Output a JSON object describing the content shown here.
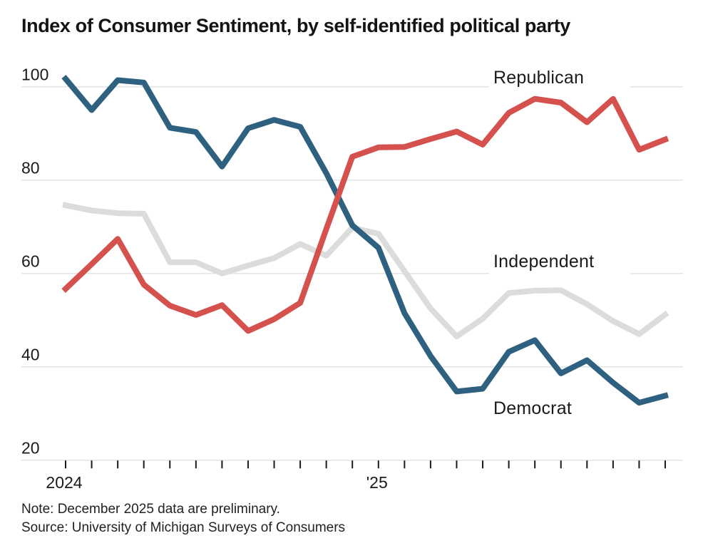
{
  "title": "Index of Consumer Sentiment, by self-identified political party",
  "note": "Note: December 2025 data are preliminary.",
  "source": "Source: University of Michigan Surveys of Consumers",
  "colors": {
    "republican": "#d4514e",
    "independent": "#dcdcdc",
    "democrat": "#2e617f",
    "gridline": "#e3e3e3",
    "axis_tick": "#1a1a1a",
    "text": "#1a1a1a"
  },
  "chart_data": {
    "type": "line",
    "title": "Index of Consumer Sentiment, by self-identified political party",
    "x_unit": "month",
    "x_range": "Jan 2024 - Dec 2025",
    "x": [
      "Jan 2024",
      "Feb 2024",
      "Mar 2024",
      "Apr 2024",
      "May 2024",
      "Jun 2024",
      "Jul 2024",
      "Aug 2024",
      "Sep 2024",
      "Oct 2024",
      "Nov 2024",
      "Dec 2024",
      "Jan 2025",
      "Feb 2025",
      "Mar 2025",
      "Apr 2025",
      "May 2025",
      "Jun 2025",
      "Jul 2025",
      "Aug 2025",
      "Sep 2025",
      "Oct 2025",
      "Nov 2025",
      "Dec 2025"
    ],
    "x_tick_labels": [
      {
        "text": "2024",
        "month_index": 0
      },
      {
        "text": "'25",
        "month_index": 12
      }
    ],
    "y_ticks": [
      100,
      80,
      60,
      40,
      20
    ],
    "ylim": [
      20,
      103
    ],
    "grid": "horizontal",
    "legend": "inline-labels",
    "series": [
      {
        "name": "Republican",
        "color": "#d4514e",
        "z": 3,
        "values": [
          56.7,
          62.0,
          67.4,
          57.6,
          53.1,
          51.1,
          53.2,
          47.7,
          50.2,
          53.7,
          69.5,
          85.0,
          87.0,
          87.1,
          88.8,
          90.4,
          87.6,
          94.4,
          97.4,
          96.6,
          92.4,
          97.4,
          86.5,
          88.7
        ]
      },
      {
        "name": "Independent",
        "color": "#dcdcdc",
        "z": 1,
        "values": [
          74.6,
          73.5,
          72.9,
          72.8,
          62.4,
          62.4,
          60.0,
          61.7,
          63.3,
          66.3,
          63.8,
          69.8,
          68.5,
          60.5,
          52.5,
          46.5,
          50.3,
          55.8,
          56.3,
          56.4,
          53.4,
          49.8,
          47.0,
          51.2
        ]
      },
      {
        "name": "Democrat",
        "color": "#2e617f",
        "z": 2,
        "values": [
          101.7,
          95.0,
          101.4,
          100.9,
          91.2,
          90.3,
          82.9,
          91.1,
          92.9,
          91.4,
          81.5,
          70.3,
          65.5,
          51.5,
          42.3,
          34.7,
          35.3,
          43.2,
          45.7,
          38.6,
          41.4,
          36.6,
          32.3,
          33.8
        ]
      }
    ]
  }
}
